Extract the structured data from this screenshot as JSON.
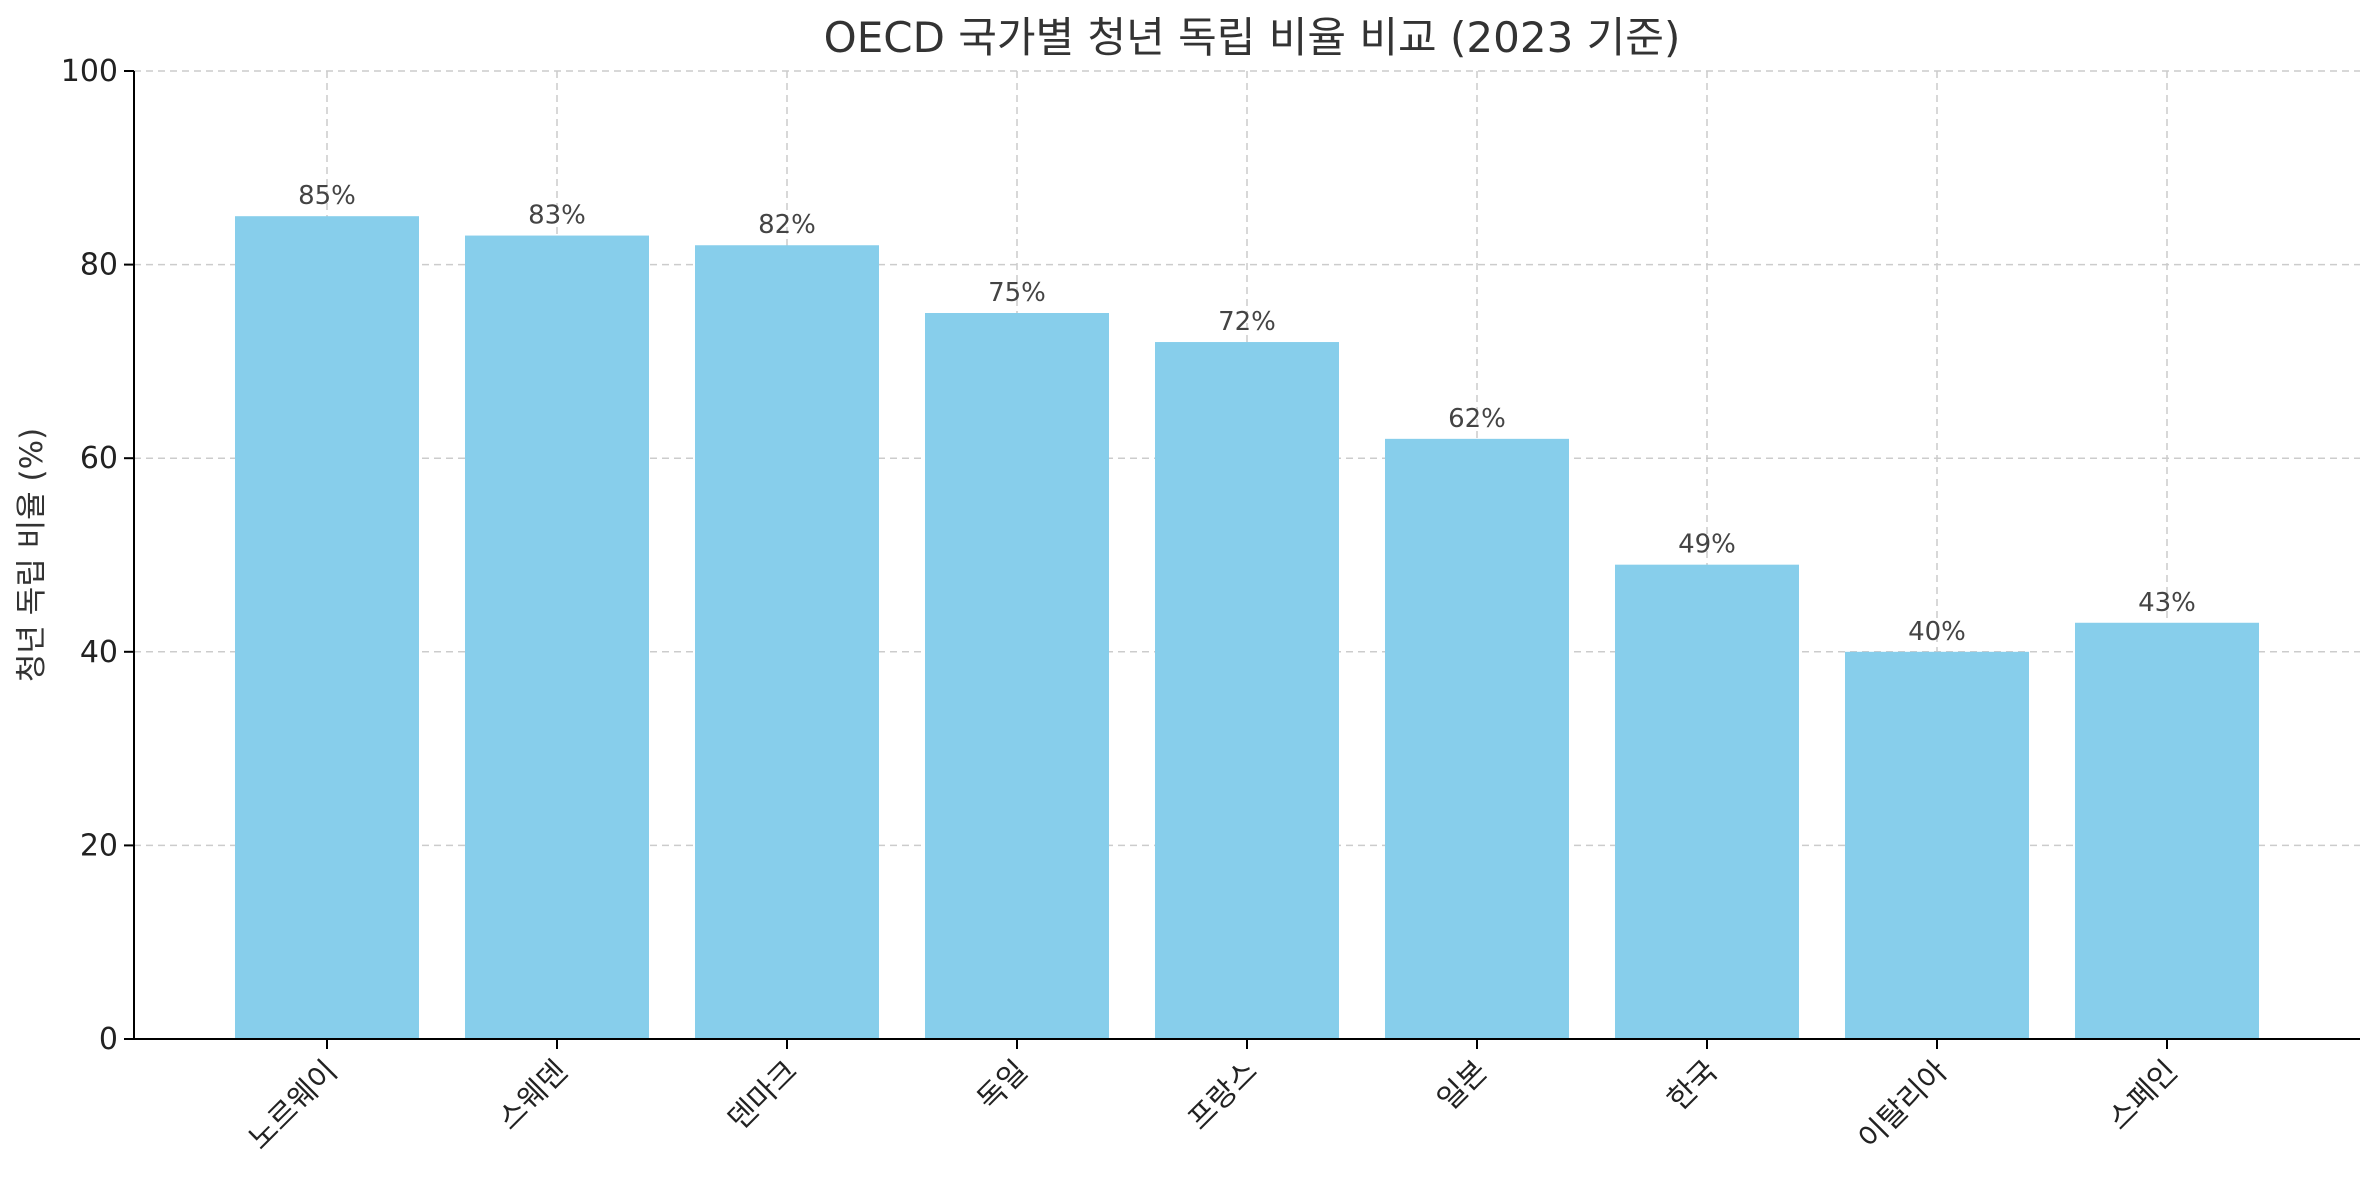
{
  "chart_data": {
    "type": "bar",
    "title": "OECD 국가별 청년 독립 비율 비교 (2023 기준)",
    "xlabel": "",
    "ylabel": "청년 독립 비율 (%)",
    "categories": [
      "노르웨이",
      "스웨덴",
      "덴마크",
      "독일",
      "프랑스",
      "일본",
      "한국",
      "이탈리아",
      "스페인"
    ],
    "values": [
      85,
      83,
      82,
      75,
      72,
      62,
      49,
      40,
      43
    ],
    "data_labels": [
      "85%",
      "83%",
      "82%",
      "75%",
      "72%",
      "62%",
      "49%",
      "40%",
      "43%"
    ],
    "ylim": [
      0,
      100
    ],
    "yticks": [
      0,
      20,
      40,
      60,
      80,
      100
    ],
    "grid": true,
    "bar_color": "#87CEEB"
  }
}
